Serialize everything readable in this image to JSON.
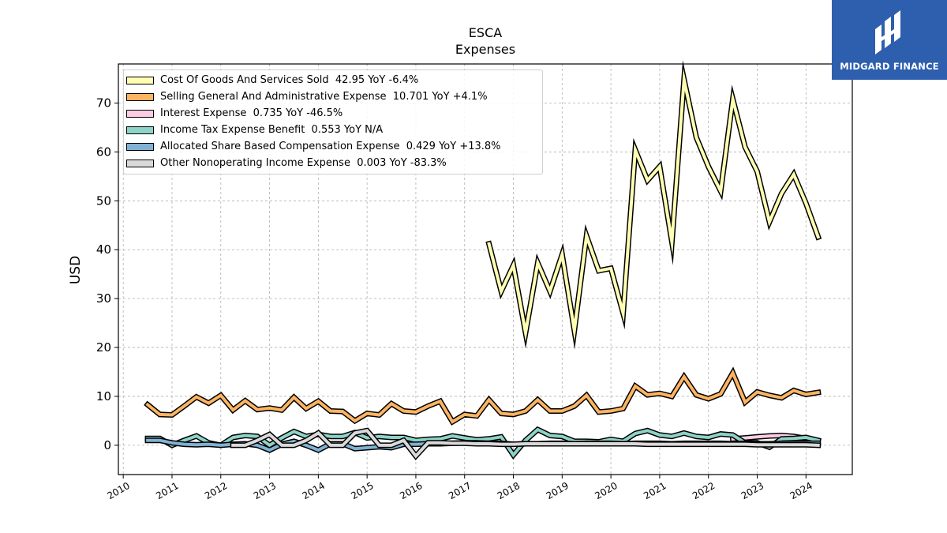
{
  "brand": {
    "name": "MIDGARD FINANCE",
    "color": "#2d5fae"
  },
  "chart_data": {
    "type": "line",
    "title": "ESCA",
    "subtitle": "Expenses",
    "ylabel": "USD",
    "xlabel": "",
    "ylim": [
      -6,
      78
    ],
    "xlim": [
      2009.9,
      2024.95
    ],
    "yticks": [
      0,
      10,
      20,
      30,
      40,
      50,
      60,
      70
    ],
    "xticks": [
      "2010",
      "2011",
      "2012",
      "2013",
      "2014",
      "2015",
      "2016",
      "2017",
      "2018",
      "2019",
      "2020",
      "2021",
      "2022",
      "2023",
      "2024"
    ],
    "grid": true,
    "legend_position": "top-left",
    "series": [
      {
        "name": "Cost Of Goods And Services Sold",
        "legend": "Cost Of Goods And Services Sold  42.95 YoY -6.4%",
        "color": "#ffffb3",
        "x": [
          2017.5,
          2017.75,
          2018.0,
          2018.25,
          2018.5,
          2018.75,
          2019.0,
          2019.25,
          2019.5,
          2019.75,
          2020.0,
          2020.25,
          2020.5,
          2020.75,
          2021.0,
          2021.25,
          2021.5,
          2021.75,
          2022.0,
          2022.25,
          2022.5,
          2022.75,
          2023.0,
          2023.25,
          2023.5,
          2023.75,
          2024.0,
          2024.25
        ],
        "values": [
          41.2,
          31.5,
          36.8,
          23.0,
          37.3,
          31.5,
          39.0,
          23.5,
          42.8,
          35.7,
          36.2,
          27.0,
          60.4,
          54.2,
          57.0,
          41.6,
          74.8,
          63.0,
          57.0,
          52.0,
          70.8,
          61.0,
          56.0,
          45.7,
          51.5,
          55.4,
          49.5,
          42.6
        ]
      },
      {
        "name": "Selling General And Administrative Expense",
        "legend": "Selling General And Administrative Expense  10.701 YoY +4.1%",
        "color": "#fdb462",
        "x": [
          2010.5,
          2010.75,
          2011.0,
          2011.25,
          2011.5,
          2011.75,
          2012.0,
          2012.25,
          2012.5,
          2012.75,
          2013.0,
          2013.25,
          2013.5,
          2013.75,
          2014.0,
          2014.25,
          2014.5,
          2014.75,
          2015.0,
          2015.25,
          2015.5,
          2015.75,
          2016.0,
          2016.25,
          2016.5,
          2016.75,
          2017.0,
          2017.25,
          2017.5,
          2017.75,
          2018.0,
          2018.25,
          2018.5,
          2018.75,
          2019.0,
          2019.25,
          2019.5,
          2019.75,
          2020.0,
          2020.25,
          2020.5,
          2020.75,
          2021.0,
          2021.25,
          2021.5,
          2021.75,
          2022.0,
          2022.25,
          2022.5,
          2022.75,
          2023.0,
          2023.25,
          2023.5,
          2023.75,
          2024.0,
          2024.25
        ],
        "values": [
          8.3,
          6.3,
          6.2,
          8.0,
          9.9,
          8.6,
          10.2,
          7.2,
          9.1,
          7.3,
          7.6,
          7.2,
          9.8,
          7.5,
          9.0,
          7.0,
          6.9,
          5.0,
          6.5,
          6.2,
          8.5,
          7.0,
          6.8,
          8.0,
          9.0,
          4.8,
          6.3,
          6.0,
          9.3,
          6.5,
          6.3,
          7.0,
          9.3,
          7.0,
          7.0,
          8.0,
          10.2,
          6.8,
          7.0,
          7.5,
          12.1,
          10.3,
          10.6,
          10.0,
          14.0,
          10.3,
          9.5,
          10.5,
          14.8,
          8.8,
          10.9,
          10.2,
          9.7,
          11.2,
          10.4,
          10.8
        ]
      },
      {
        "name": "Interest Expense",
        "legend": "Interest Expense  0.735 YoY -46.5%",
        "color": "#fccde5",
        "x": [
          2022.5,
          2022.75,
          2023.0,
          2023.25,
          2023.5,
          2023.75,
          2024.0,
          2024.25
        ],
        "values": [
          1.3,
          1.5,
          1.7,
          1.9,
          2.0,
          1.8,
          1.4,
          0.9
        ]
      },
      {
        "name": "Income Tax Expense Benefit",
        "legend": "Income Tax Expense Benefit  0.553 YoY N/A",
        "color": "#8dd3c7",
        "x": [
          2010.5,
          2010.75,
          2011.0,
          2011.25,
          2011.5,
          2011.75,
          2012.0,
          2012.25,
          2012.5,
          2012.75,
          2013.0,
          2013.25,
          2013.5,
          2013.75,
          2014.0,
          2014.25,
          2014.5,
          2014.75,
          2015.0,
          2015.25,
          2015.5,
          2015.75,
          2016.0,
          2016.25,
          2016.5,
          2016.75,
          2017.0,
          2017.25,
          2017.5,
          2017.75,
          2018.0,
          2018.25,
          2018.5,
          2018.75,
          2019.0,
          2019.25,
          2019.5,
          2019.75,
          2020.0,
          2020.25,
          2020.5,
          2020.75,
          2021.0,
          2021.25,
          2021.5,
          2021.75,
          2022.0,
          2022.25,
          2022.5,
          2022.75,
          2023.0,
          2023.25,
          2023.5,
          2023.75,
          2024.0,
          2024.25
        ],
        "values": [
          1.4,
          1.4,
          0.0,
          1.0,
          1.9,
          0.5,
          0.0,
          1.6,
          2.0,
          1.8,
          0.0,
          1.5,
          2.8,
          1.8,
          2.2,
          1.8,
          1.8,
          2.6,
          1.5,
          1.8,
          1.6,
          1.6,
          1.0,
          1.2,
          1.3,
          1.9,
          1.5,
          1.1,
          1.3,
          1.7,
          -2.0,
          1.0,
          3.2,
          2.0,
          1.8,
          0.8,
          0.8,
          0.7,
          1.2,
          0.8,
          2.4,
          3.0,
          2.1,
          1.8,
          2.5,
          1.8,
          1.6,
          2.3,
          2.1,
          0.5,
          0.5,
          -0.4,
          1.3,
          1.4,
          1.6,
          1.0
        ]
      },
      {
        "name": "Allocated Share Based Compensation Expense",
        "legend": "Allocated Share Based Compensation Expense  0.429 YoY +13.8%",
        "color": "#80b1d3",
        "x": [
          2010.5,
          2010.75,
          2011.0,
          2011.25,
          2011.5,
          2011.75,
          2012.0,
          2012.25,
          2012.5,
          2012.75,
          2013.0,
          2013.25,
          2013.5,
          2013.75,
          2014.0,
          2014.25,
          2014.5,
          2014.75,
          2015.0,
          2015.25,
          2015.5,
          2015.75,
          2016.0,
          2016.25,
          2016.5,
          2016.75,
          2017.0,
          2017.25,
          2017.5,
          2017.75,
          2018.0,
          2018.25,
          2018.5,
          2018.75,
          2019.0,
          2019.25,
          2019.5,
          2019.75,
          2020.0,
          2020.25,
          2020.5,
          2020.75,
          2021.0,
          2021.25,
          2021.5,
          2021.75,
          2022.0,
          2022.25,
          2022.5,
          2022.75,
          2023.0,
          2023.25,
          2023.5,
          2023.75,
          2024.0,
          2024.25
        ],
        "values": [
          1.0,
          1.0,
          0.5,
          0.2,
          0.1,
          0.2,
          0.0,
          0.2,
          0.3,
          0.0,
          -1.0,
          0.2,
          0.8,
          0.0,
          -1.0,
          0.3,
          0.3,
          -0.7,
          -0.5,
          -0.3,
          -0.5,
          0.2,
          0.2,
          0.3,
          0.3,
          0.4,
          0.5,
          0.5,
          0.4,
          0.4,
          0.2,
          0.3,
          0.3,
          0.4,
          0.4,
          0.3,
          0.4,
          0.4,
          0.4,
          0.3,
          0.4,
          0.4,
          0.4,
          0.3,
          0.4,
          0.4,
          0.4,
          0.4,
          0.3,
          0.4,
          0.3,
          0.3,
          0.4,
          0.4,
          0.4,
          0.4
        ]
      },
      {
        "name": "Other Nonoperating Income Expense",
        "legend": "Other Nonoperating Income Expense  0.003 YoY -83.3%",
        "color": "#d9d9d9",
        "x": [
          2012.25,
          2012.5,
          2012.75,
          2013.0,
          2013.25,
          2013.5,
          2013.75,
          2014.0,
          2014.25,
          2014.5,
          2014.75,
          2015.0,
          2015.25,
          2015.5,
          2015.75,
          2016.0,
          2016.25,
          2016.5,
          2016.75,
          2017.0,
          2017.25,
          2017.5,
          2017.75,
          2018.0,
          2018.25,
          2018.5,
          2018.75,
          2019.0,
          2019.25,
          2019.5,
          2019.75,
          2020.0,
          2020.25,
          2020.5,
          2020.75,
          2021.0,
          2021.25,
          2021.5,
          2021.75,
          2022.0,
          2022.25,
          2022.5,
          2022.75,
          2023.0,
          2023.25,
          2023.5,
          2023.75,
          2024.0,
          2024.25
        ],
        "values": [
          0.0,
          0.0,
          1.0,
          2.2,
          0.0,
          0.0,
          1.0,
          2.5,
          0.0,
          0.0,
          2.5,
          3.0,
          0.0,
          0.0,
          1.0,
          -2.2,
          0.5,
          0.5,
          0.4,
          0.4,
          0.3,
          0.3,
          0.2,
          0.2,
          0.3,
          0.3,
          0.3,
          0.3,
          0.3,
          0.3,
          0.3,
          0.3,
          0.3,
          0.3,
          0.2,
          0.2,
          0.2,
          0.2,
          0.2,
          0.2,
          0.2,
          0.2,
          0.2,
          0.1,
          0.1,
          0.1,
          0.1,
          0.1,
          0.0
        ]
      }
    ]
  }
}
